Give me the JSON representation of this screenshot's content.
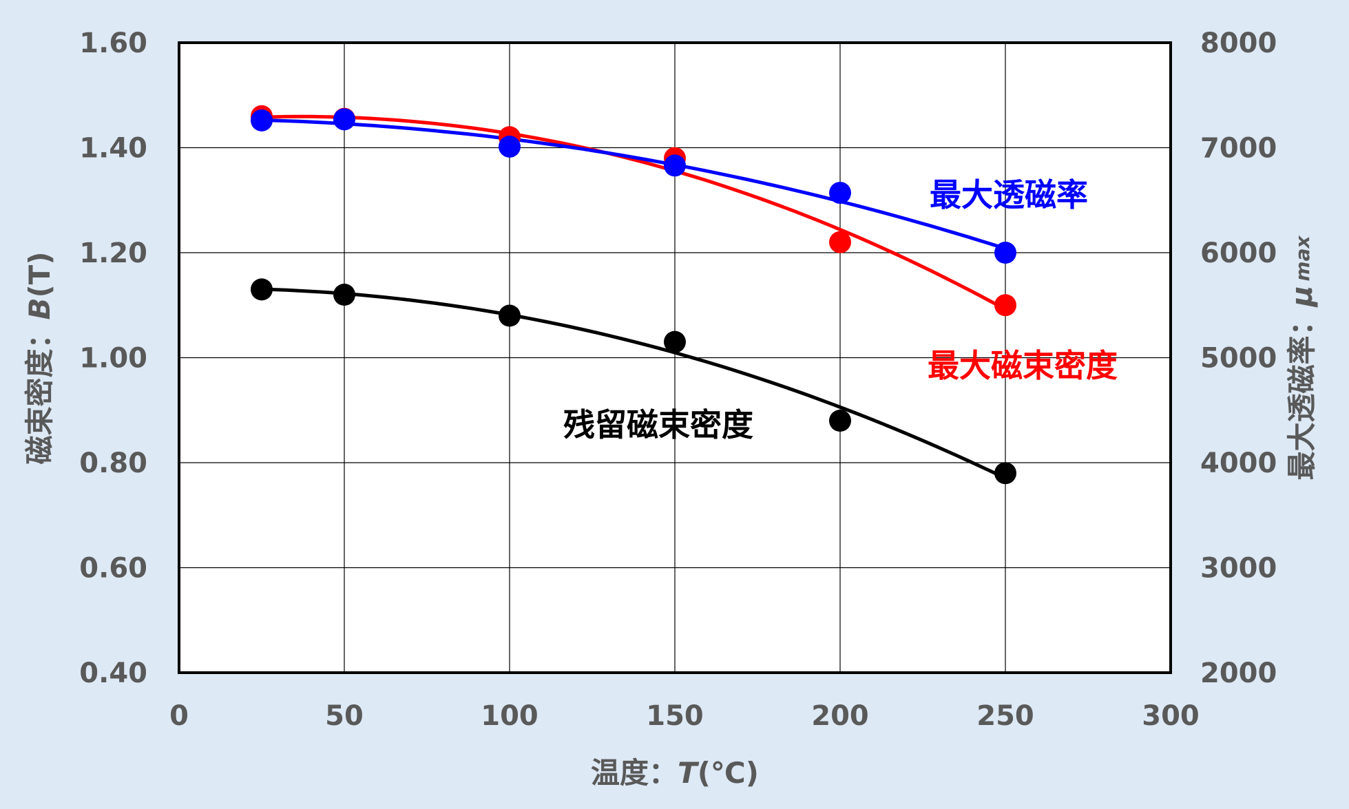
{
  "chart_data": {
    "type": "scatter",
    "title": "",
    "xlabel": "温度：T(℃)",
    "xlabel_main": "温度：",
    "xlabel_var": "T",
    "xlabel_unit": "(℃)",
    "ylabel": "磁束密度：B(T)",
    "ylabel_main": "磁束密度：",
    "ylabel_var": "B",
    "ylabel_unit": "(T)",
    "y2label": "最大透磁率：μ max",
    "y2label_main": "最大透磁率：",
    "y2label_var": "μ",
    "y2label_sub": "max",
    "xlim": [
      0,
      300
    ],
    "ylim": [
      0.4,
      1.6
    ],
    "y2lim": [
      2000,
      8000
    ],
    "x_ticks": [
      "0",
      "50",
      "100",
      "150",
      "200",
      "250",
      "300"
    ],
    "y_ticks": [
      "0.40",
      "0.60",
      "0.80",
      "1.00",
      "1.20",
      "1.40",
      "1.60"
    ],
    "y2_ticks": [
      "2000",
      "3000",
      "4000",
      "5000",
      "6000",
      "7000",
      "8000"
    ],
    "grid": true,
    "series": [
      {
        "name": "残留磁束密度",
        "axis": "left",
        "color": "#000000",
        "x": [
          25,
          50,
          100,
          150,
          200,
          250
        ],
        "y": [
          1.13,
          1.12,
          1.08,
          1.03,
          0.88,
          0.78
        ]
      },
      {
        "name": "最大磁束密度",
        "axis": "left",
        "color": "#ff0000",
        "x": [
          25,
          50,
          100,
          150,
          200,
          250
        ],
        "y": [
          1.46,
          1.455,
          1.42,
          1.38,
          1.22,
          1.1
        ]
      },
      {
        "name": "最大透磁率",
        "axis": "right",
        "color": "#0000ff",
        "x": [
          25,
          50,
          100,
          150,
          200,
          250
        ],
        "y": [
          7260,
          7270,
          7010,
          6830,
          6570,
          6000
        ]
      }
    ]
  }
}
